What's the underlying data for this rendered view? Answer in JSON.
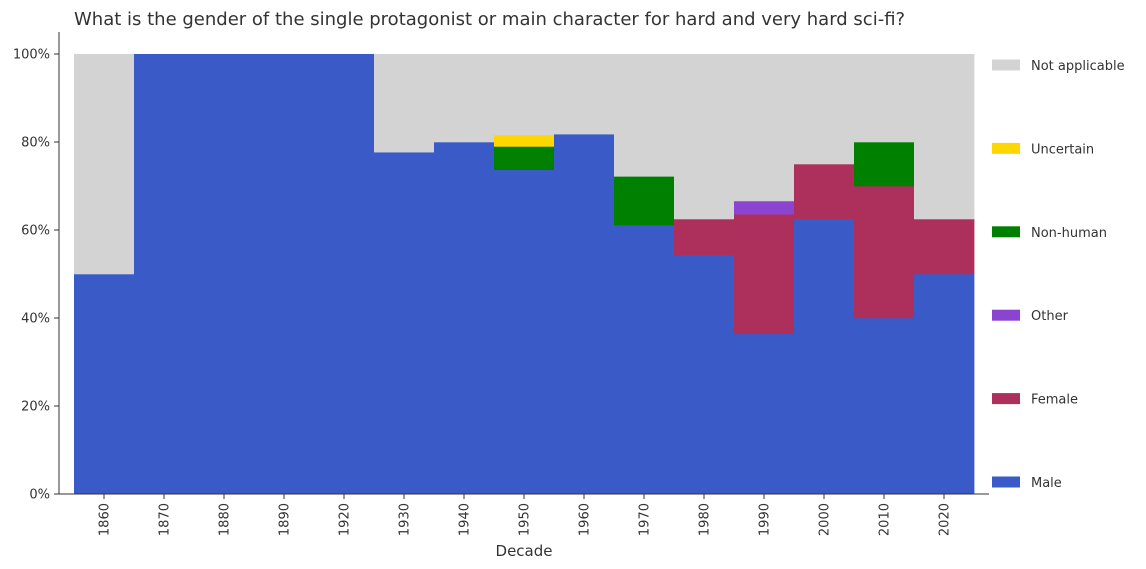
{
  "chart_data": {
    "type": "bar",
    "stacked": true,
    "normalized": true,
    "title": "What is the gender of the single protagonist or main character for hard and very hard sci-fi?",
    "xlabel": "Decade",
    "ylabel": "",
    "categories": [
      "1860",
      "1870",
      "1880",
      "1890",
      "1920",
      "1930",
      "1940",
      "1950",
      "1960",
      "1970",
      "1980",
      "1990",
      "2000",
      "2010",
      "2020"
    ],
    "ylim": [
      0,
      1
    ],
    "yticks": [
      0,
      0.2,
      0.4,
      0.6,
      0.8,
      1.0
    ],
    "ytick_labels": [
      "0%",
      "20%",
      "40%",
      "60%",
      "80%",
      "100%"
    ],
    "legend_position": "right",
    "grid": false,
    "series": [
      {
        "name": "Male",
        "color": "#3a5bc7",
        "values": [
          0.5,
          1.0,
          1.0,
          1.0,
          1.0,
          0.777,
          0.8,
          0.737,
          0.818,
          0.611,
          0.542,
          0.364,
          0.625,
          0.4,
          0.5
        ]
      },
      {
        "name": "Female",
        "color": "#ad2f5c",
        "values": [
          0,
          0,
          0,
          0,
          0,
          0,
          0,
          0,
          0,
          0,
          0.083,
          0.272,
          0.125,
          0.3,
          0.125
        ]
      },
      {
        "name": "Other",
        "color": "#8b44d0",
        "values": [
          0,
          0,
          0,
          0,
          0,
          0,
          0,
          0,
          0,
          0,
          0,
          0.03,
          0,
          0,
          0
        ]
      },
      {
        "name": "Non-human",
        "color": "#008000",
        "values": [
          0,
          0,
          0,
          0,
          0,
          0,
          0,
          0.053,
          0,
          0.111,
          0,
          0,
          0,
          0.1,
          0
        ]
      },
      {
        "name": "Uncertain",
        "color": "#ffd700",
        "values": [
          0,
          0,
          0,
          0,
          0,
          0,
          0,
          0.026,
          0,
          0,
          0,
          0,
          0,
          0,
          0
        ]
      },
      {
        "name": "Not applicable",
        "color": "#d3d3d3",
        "values": [
          0.5,
          0,
          0,
          0,
          0,
          0.223,
          0.2,
          0.184,
          0.182,
          0.278,
          0.375,
          0.334,
          0.25,
          0.2,
          0.375
        ]
      }
    ],
    "legend_order": [
      "Not applicable",
      "Uncertain",
      "Non-human",
      "Other",
      "Female",
      "Male"
    ]
  }
}
